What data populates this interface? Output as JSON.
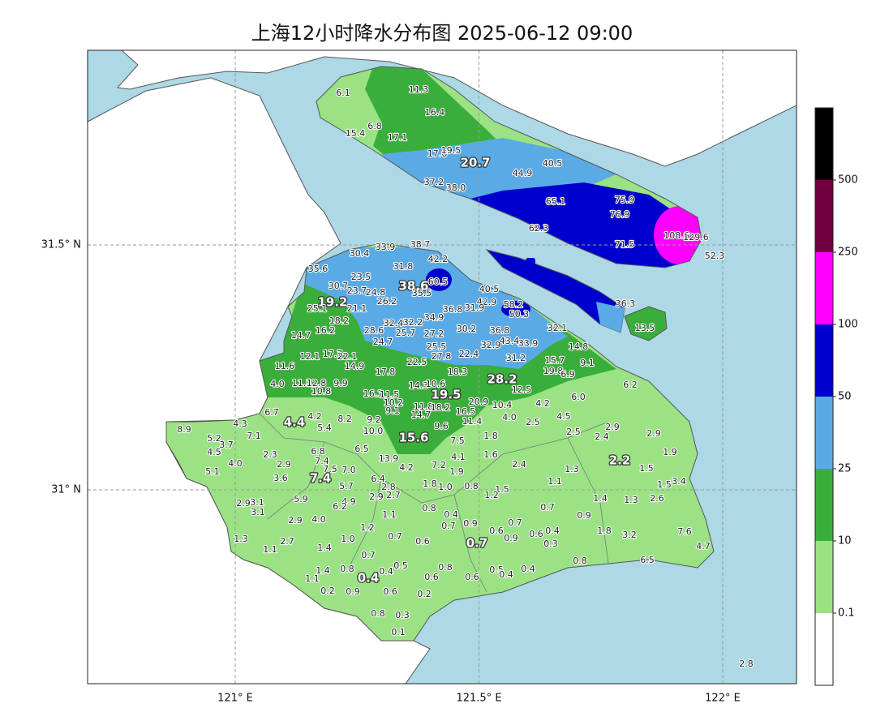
{
  "map": {
    "title": "上海12小时降水分布图 2025-06-12 09:00",
    "lon_ticks": [
      {
        "value": 121,
        "label": "121° E"
      },
      {
        "value": 121.5,
        "label": "121.5° E"
      },
      {
        "value": 122,
        "label": "122° E"
      }
    ],
    "lat_ticks": [
      {
        "value": 31,
        "label": "31° N"
      },
      {
        "value": 31.5,
        "label": "31.5° N"
      }
    ],
    "colorbar": {
      "levels": [
        0.1,
        10,
        25,
        50,
        100,
        250,
        500
      ],
      "colors": [
        "#ffffff",
        "#9be285",
        "#3aae3a",
        "#5aaae6",
        "#0000cd",
        "#ff00ff",
        "#700040",
        "#000000"
      ]
    },
    "stations": [
      "6.1",
      "11.3",
      "16.4",
      "15.4",
      "6.8",
      "17.1",
      "17.6",
      "19.5",
      "20.7",
      "40.5",
      "44.9",
      "37.2",
      "38.0",
      "65.1",
      "75.9",
      "76.9",
      "62.3",
      "71.5",
      "108.6",
      "129.6",
      "52.3",
      "36.3",
      "13.5",
      "30.4",
      "33.9",
      "38.7",
      "42.2",
      "31.8",
      "35.6",
      "23.5",
      "38.6",
      "60.5",
      "30.7",
      "23.7",
      "24.8",
      "35.5",
      "40.5",
      "26.2",
      "19.2",
      "25.1",
      "21.1",
      "42.9",
      "31.9",
      "58.2",
      "50.3",
      "36.8",
      "34.9",
      "32.4",
      "32.2",
      "18.2",
      "16.2",
      "28.6",
      "25.7",
      "27.2",
      "30.2",
      "36.8",
      "14.7",
      "24.7",
      "43.4",
      "33.9",
      "32.1",
      "25.5",
      "32.9",
      "31.2",
      "14.8",
      "12.1",
      "17.7",
      "22.1",
      "22.4",
      "27.8",
      "22.5",
      "14.9",
      "15.7",
      "9.1",
      "11.6",
      "17.8",
      "18.3",
      "19.8",
      "6.9",
      "28.2",
      "4.0",
      "11.5",
      "12.8",
      "9.9",
      "10.8",
      "14.3",
      "10.6",
      "6.2",
      "12.5",
      "16.1",
      "11.5",
      "19.5",
      "6.0",
      "10.2",
      "11.8",
      "18.2",
      "20.9",
      "10.4",
      "4.2",
      "6.7",
      "9.1",
      "14.7",
      "16.5",
      "4.5",
      "4.3",
      "4.2",
      "4.4",
      "8.2",
      "9.2",
      "4.0",
      "2.5",
      "11.4",
      "9.6",
      "5.4",
      "10.0",
      "2.9",
      "8.9",
      "7.1",
      "2.5",
      "2.4",
      "2.9",
      "15.6",
      "7.5",
      "1.8",
      "5.2",
      "3.7",
      "4.5",
      "6.5",
      "6.8",
      "1.9",
      "2.3",
      "7.4",
      "13.9",
      "4.1",
      "1.6",
      "2.2",
      "2.9",
      "4.0",
      "7.2",
      "2.4",
      "7.5",
      "7.0",
      "4.2",
      "1.9",
      "1.3",
      "1.5",
      "5.1",
      "3.6",
      "7.4",
      "6.4",
      "1.8",
      "1.0",
      "0.8",
      "1.1",
      "1.5",
      "3.4",
      "5.7",
      "2.8",
      "1.5",
      "2.7",
      "2.9",
      "1.2",
      "1.4",
      "1.3",
      "2.6",
      "5.9",
      "4.9",
      "6.2",
      "2.9",
      "3.1",
      "3.1",
      "0.8",
      "0.7",
      "1.1",
      "0.4",
      "0.9",
      "2.9",
      "4.0",
      "0.7",
      "0.9",
      "0.7",
      "1.2",
      "0.6",
      "0.6",
      "0.4",
      "1.8",
      "3.2",
      "7.6",
      "1.3",
      "2.7",
      "1.0",
      "0.7",
      "0.6",
      "0.7",
      "0.9",
      "0.3",
      "4.7",
      "1.1",
      "1.4",
      "0.7",
      "0.8",
      "0.5",
      "0.8",
      "0.4",
      "1.4",
      "6.5",
      "0.8",
      "0.4",
      "1.1",
      "0.6",
      "0.6",
      "0.5",
      "0.4",
      "0.4",
      "0.2",
      "0.9",
      "0.6",
      "0.2",
      "0.8",
      "0.3",
      "0.1",
      "2.8"
    ]
  }
}
